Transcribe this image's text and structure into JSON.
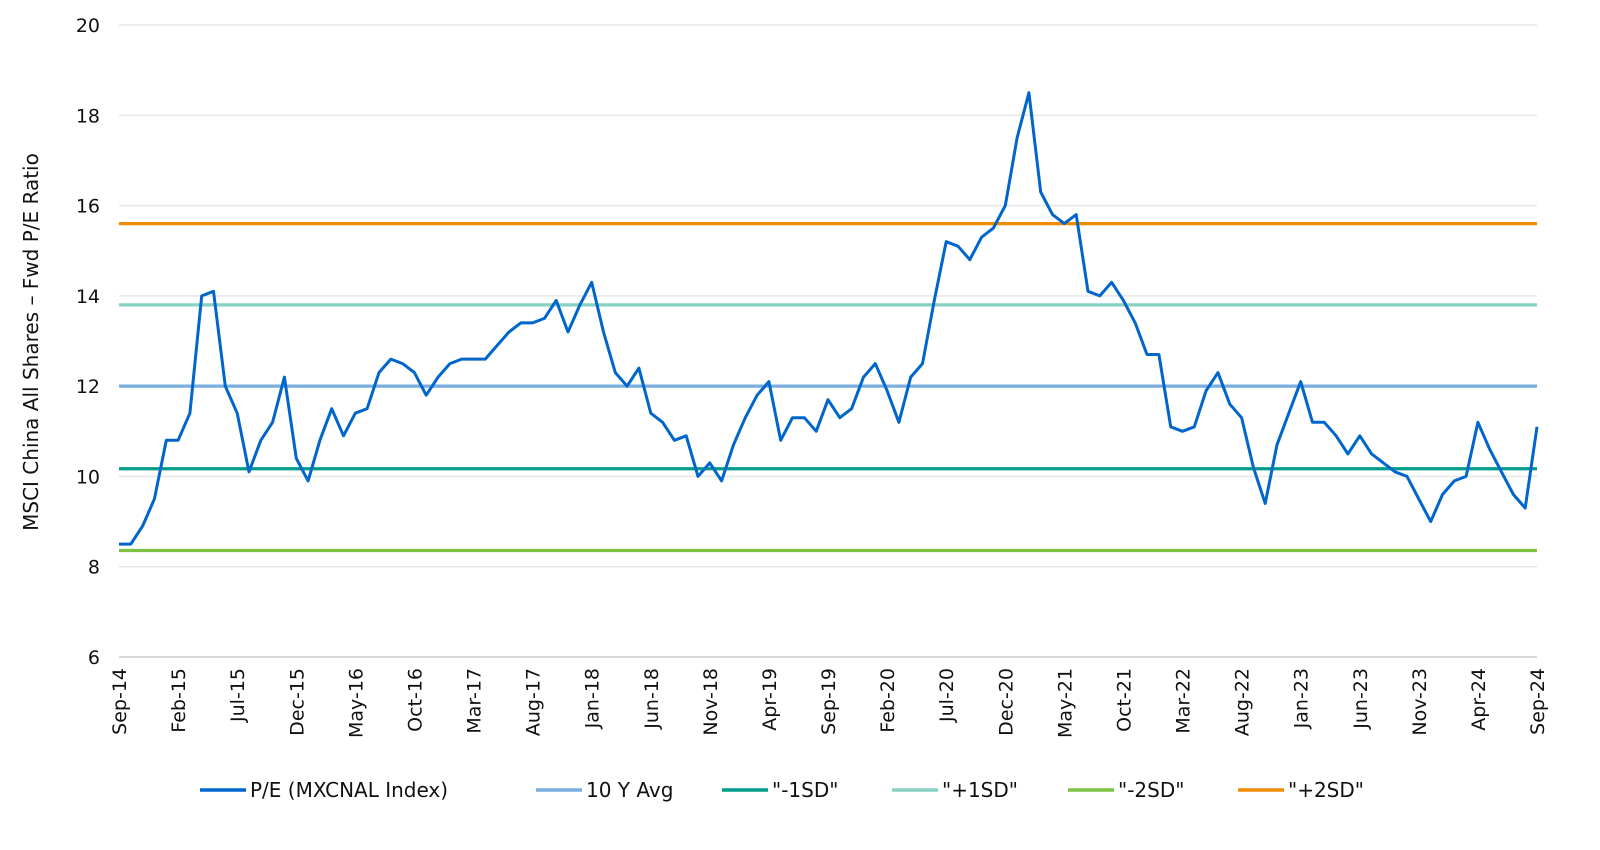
{
  "chart_data": {
    "type": "line",
    "title": "",
    "xlabel": "",
    "ylabel": "MSCI China All Shares – Fwd P/E Ratio",
    "ylim": [
      6,
      20
    ],
    "yticks": [
      6,
      8,
      10,
      12,
      14,
      16,
      18,
      20
    ],
    "xlim": [
      "2014-09",
      "2024-09"
    ],
    "xtick_labels": [
      "Sep-14",
      "Feb-15",
      "Jul-15",
      "Dec-15",
      "May-16",
      "Oct-16",
      "Mar-17",
      "Aug-17",
      "Jan-18",
      "Jun-18",
      "Nov-18",
      "Apr-19",
      "Sep-19",
      "Feb-20",
      "Jul-20",
      "Dec-20",
      "May-21",
      "Oct-21",
      "Mar-22",
      "Aug-22",
      "Jan-23",
      "Jun-23",
      "Nov-23",
      "Apr-24",
      "Sep-24"
    ],
    "grid": true,
    "legend_position": "bottom",
    "series": [
      {
        "name": "P/E (MXCNAL Index)",
        "color": "#0066cc",
        "kind": "line",
        "x": [
          "2014-09",
          "2014-10",
          "2014-11",
          "2014-12",
          "2015-01",
          "2015-02",
          "2015-03",
          "2015-04",
          "2015-05",
          "2015-06",
          "2015-07",
          "2015-08",
          "2015-09",
          "2015-10",
          "2015-11",
          "2015-12",
          "2016-01",
          "2016-02",
          "2016-03",
          "2016-04",
          "2016-05",
          "2016-06",
          "2016-07",
          "2016-08",
          "2016-09",
          "2016-10",
          "2016-11",
          "2016-12",
          "2017-01",
          "2017-02",
          "2017-03",
          "2017-04",
          "2017-05",
          "2017-06",
          "2017-07",
          "2017-08",
          "2017-09",
          "2017-10",
          "2017-11",
          "2017-12",
          "2018-01",
          "2018-02",
          "2018-03",
          "2018-04",
          "2018-05",
          "2018-06",
          "2018-07",
          "2018-08",
          "2018-09",
          "2018-10",
          "2018-11",
          "2018-12",
          "2019-01",
          "2019-02",
          "2019-03",
          "2019-04",
          "2019-05",
          "2019-06",
          "2019-07",
          "2019-08",
          "2019-09",
          "2019-10",
          "2019-11",
          "2019-12",
          "2020-01",
          "2020-02",
          "2020-03",
          "2020-04",
          "2020-05",
          "2020-06",
          "2020-07",
          "2020-08",
          "2020-09",
          "2020-10",
          "2020-11",
          "2020-12",
          "2021-01",
          "2021-02",
          "2021-03",
          "2021-04",
          "2021-05",
          "2021-06",
          "2021-07",
          "2021-08",
          "2021-09",
          "2021-10",
          "2021-11",
          "2021-12",
          "2022-01",
          "2022-02",
          "2022-03",
          "2022-04",
          "2022-05",
          "2022-06",
          "2022-07",
          "2022-08",
          "2022-09",
          "2022-10",
          "2022-11",
          "2022-12",
          "2023-01",
          "2023-02",
          "2023-03",
          "2023-04",
          "2023-05",
          "2023-06",
          "2023-07",
          "2023-08",
          "2023-09",
          "2023-10",
          "2023-11",
          "2023-12",
          "2024-01",
          "2024-02",
          "2024-03",
          "2024-04",
          "2024-05",
          "2024-06",
          "2024-07",
          "2024-08",
          "2024-09"
        ],
        "values": [
          8.5,
          8.5,
          8.9,
          9.5,
          10.8,
          10.8,
          11.4,
          14.0,
          14.1,
          12.0,
          11.4,
          10.1,
          10.8,
          11.2,
          12.2,
          10.4,
          9.9,
          10.8,
          11.5,
          10.9,
          11.4,
          11.5,
          12.3,
          12.6,
          12.5,
          12.3,
          11.8,
          12.2,
          12.5,
          12.6,
          12.6,
          12.6,
          12.9,
          13.2,
          13.4,
          13.4,
          13.5,
          13.9,
          13.2,
          13.8,
          14.3,
          13.2,
          12.3,
          12.0,
          12.4,
          11.4,
          11.2,
          10.8,
          10.9,
          10.0,
          10.3,
          9.9,
          10.7,
          11.3,
          11.8,
          12.1,
          10.8,
          11.3,
          11.3,
          11.0,
          11.7,
          11.3,
          11.5,
          12.2,
          12.5,
          11.9,
          11.2,
          12.2,
          12.5,
          13.9,
          15.2,
          15.1,
          14.8,
          15.3,
          15.5,
          16.0,
          17.5,
          18.5,
          16.3,
          15.8,
          15.6,
          15.8,
          14.1,
          14.0,
          14.3,
          13.9,
          13.4,
          12.7,
          12.7,
          11.1,
          11.0,
          11.1,
          11.9,
          12.3,
          11.6,
          11.3,
          10.2,
          9.4,
          10.7,
          11.4,
          12.1,
          11.2,
          11.2,
          10.9,
          10.5,
          10.9,
          10.5,
          10.3,
          10.1,
          10.0,
          9.5,
          9.0,
          9.6,
          9.9,
          10.0,
          11.2,
          10.6,
          10.1,
          9.6,
          9.3,
          11.1
        ]
      },
      {
        "name": "10 Y Avg",
        "color": "#79aee0",
        "kind": "hline",
        "value": 12.0
      },
      {
        "name": "\"-1SD\"",
        "color": "#009e8a",
        "kind": "hline",
        "value": 10.17
      },
      {
        "name": "\"+1SD\"",
        "color": "#86d1c4",
        "kind": "hline",
        "value": 13.8
      },
      {
        "name": "\"-2SD\"",
        "color": "#7dc242",
        "kind": "hline",
        "value": 8.36
      },
      {
        "name": "\"+2SD\"",
        "color": "#f08c00",
        "kind": "hline",
        "value": 15.6
      }
    ]
  }
}
